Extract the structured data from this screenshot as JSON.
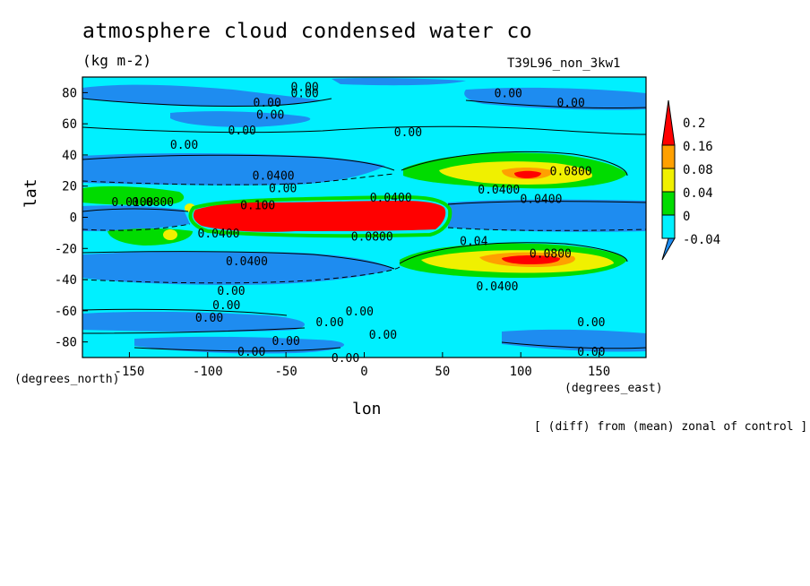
{
  "header": {
    "title": "atmosphere cloud condensed water co",
    "units": "(kg m-2)",
    "run_id": "T39L96_non_3kw1",
    "note": "[ (diff) from (mean) zonal of control ]"
  },
  "axes": {
    "x_label": "lon",
    "y_label": "lat",
    "x_units": "(degrees_east)",
    "y_units": "(degrees_north)"
  },
  "colors": {
    "below": "#1e8cf0",
    "c1": "#00f0ff",
    "c2": "#00dc00",
    "c3": "#f0f000",
    "c4": "#ffa000",
    "above": "#ff0000"
  },
  "chart_data": {
    "type": "heatmap",
    "title": "atmosphere cloud condensed water co",
    "xlabel": "lon",
    "ylabel": "lat",
    "xlim": [
      -180,
      180
    ],
    "ylim": [
      -90,
      90
    ],
    "x_ticks": [
      "-150",
      "-100",
      "-50",
      "0",
      "50",
      "100",
      "150"
    ],
    "y_ticks": [
      "80",
      "60",
      "40",
      "20",
      "0",
      "-20",
      "-40",
      "-60",
      "-80"
    ],
    "colorbar_levels": [
      "0.2",
      "0.16",
      "0.08",
      "0.04",
      "0",
      "-0.04"
    ],
    "contour_labels": [
      {
        "text": "0.00",
        "lon": -38,
        "lat": 84
      },
      {
        "text": "0.00",
        "lon": -38,
        "lat": 80
      },
      {
        "text": "0.00",
        "lon": 92,
        "lat": 80
      },
      {
        "text": "0.00",
        "lon": -62,
        "lat": 74
      },
      {
        "text": "0.00",
        "lon": 132,
        "lat": 74
      },
      {
        "text": "0.00",
        "lon": -60,
        "lat": 66
      },
      {
        "text": "0.00",
        "lon": -78,
        "lat": 56
      },
      {
        "text": "0.00",
        "lon": 28,
        "lat": 55
      },
      {
        "text": "0.00",
        "lon": -115,
        "lat": 47
      },
      {
        "text": "0.0800",
        "lon": 132,
        "lat": 30
      },
      {
        "text": "0.0400",
        "lon": -58,
        "lat": 27
      },
      {
        "text": "0.00",
        "lon": -52,
        "lat": 19
      },
      {
        "text": "0.0400",
        "lon": 86,
        "lat": 18
      },
      {
        "text": "0.0400",
        "lon": 17,
        "lat": 13
      },
      {
        "text": "0.0400",
        "lon": 113,
        "lat": 12
      },
      {
        "text": "0.0100",
        "lon": -148,
        "lat": 10
      },
      {
        "text": "0.0800",
        "lon": -135,
        "lat": 10
      },
      {
        "text": "0.100",
        "lon": -68,
        "lat": 8
      },
      {
        "text": "0.0400",
        "lon": -93,
        "lat": -10
      },
      {
        "text": "0.0800",
        "lon": 5,
        "lat": -12
      },
      {
        "text": "0.04",
        "lon": 70,
        "lat": -15
      },
      {
        "text": "0.0800",
        "lon": 119,
        "lat": -23
      },
      {
        "text": "0.0400",
        "lon": -75,
        "lat": -28
      },
      {
        "text": "0.0400",
        "lon": 85,
        "lat": -44
      },
      {
        "text": "0.00",
        "lon": -85,
        "lat": -47
      },
      {
        "text": "0.00",
        "lon": -88,
        "lat": -56
      },
      {
        "text": "0.00",
        "lon": -3,
        "lat": -60
      },
      {
        "text": "0.00",
        "lon": -99,
        "lat": -64
      },
      {
        "text": "0.00",
        "lon": -22,
        "lat": -67
      },
      {
        "text": "0.00",
        "lon": 145,
        "lat": -67
      },
      {
        "text": "0.00",
        "lon": 12,
        "lat": -75
      },
      {
        "text": "0.00",
        "lon": -50,
        "lat": -79
      },
      {
        "text": "0.00",
        "lon": -72,
        "lat": -86
      },
      {
        "text": "0.00",
        "lon": 145,
        "lat": -86
      },
      {
        "text": "0.00",
        "lon": -12,
        "lat": -90
      }
    ]
  }
}
